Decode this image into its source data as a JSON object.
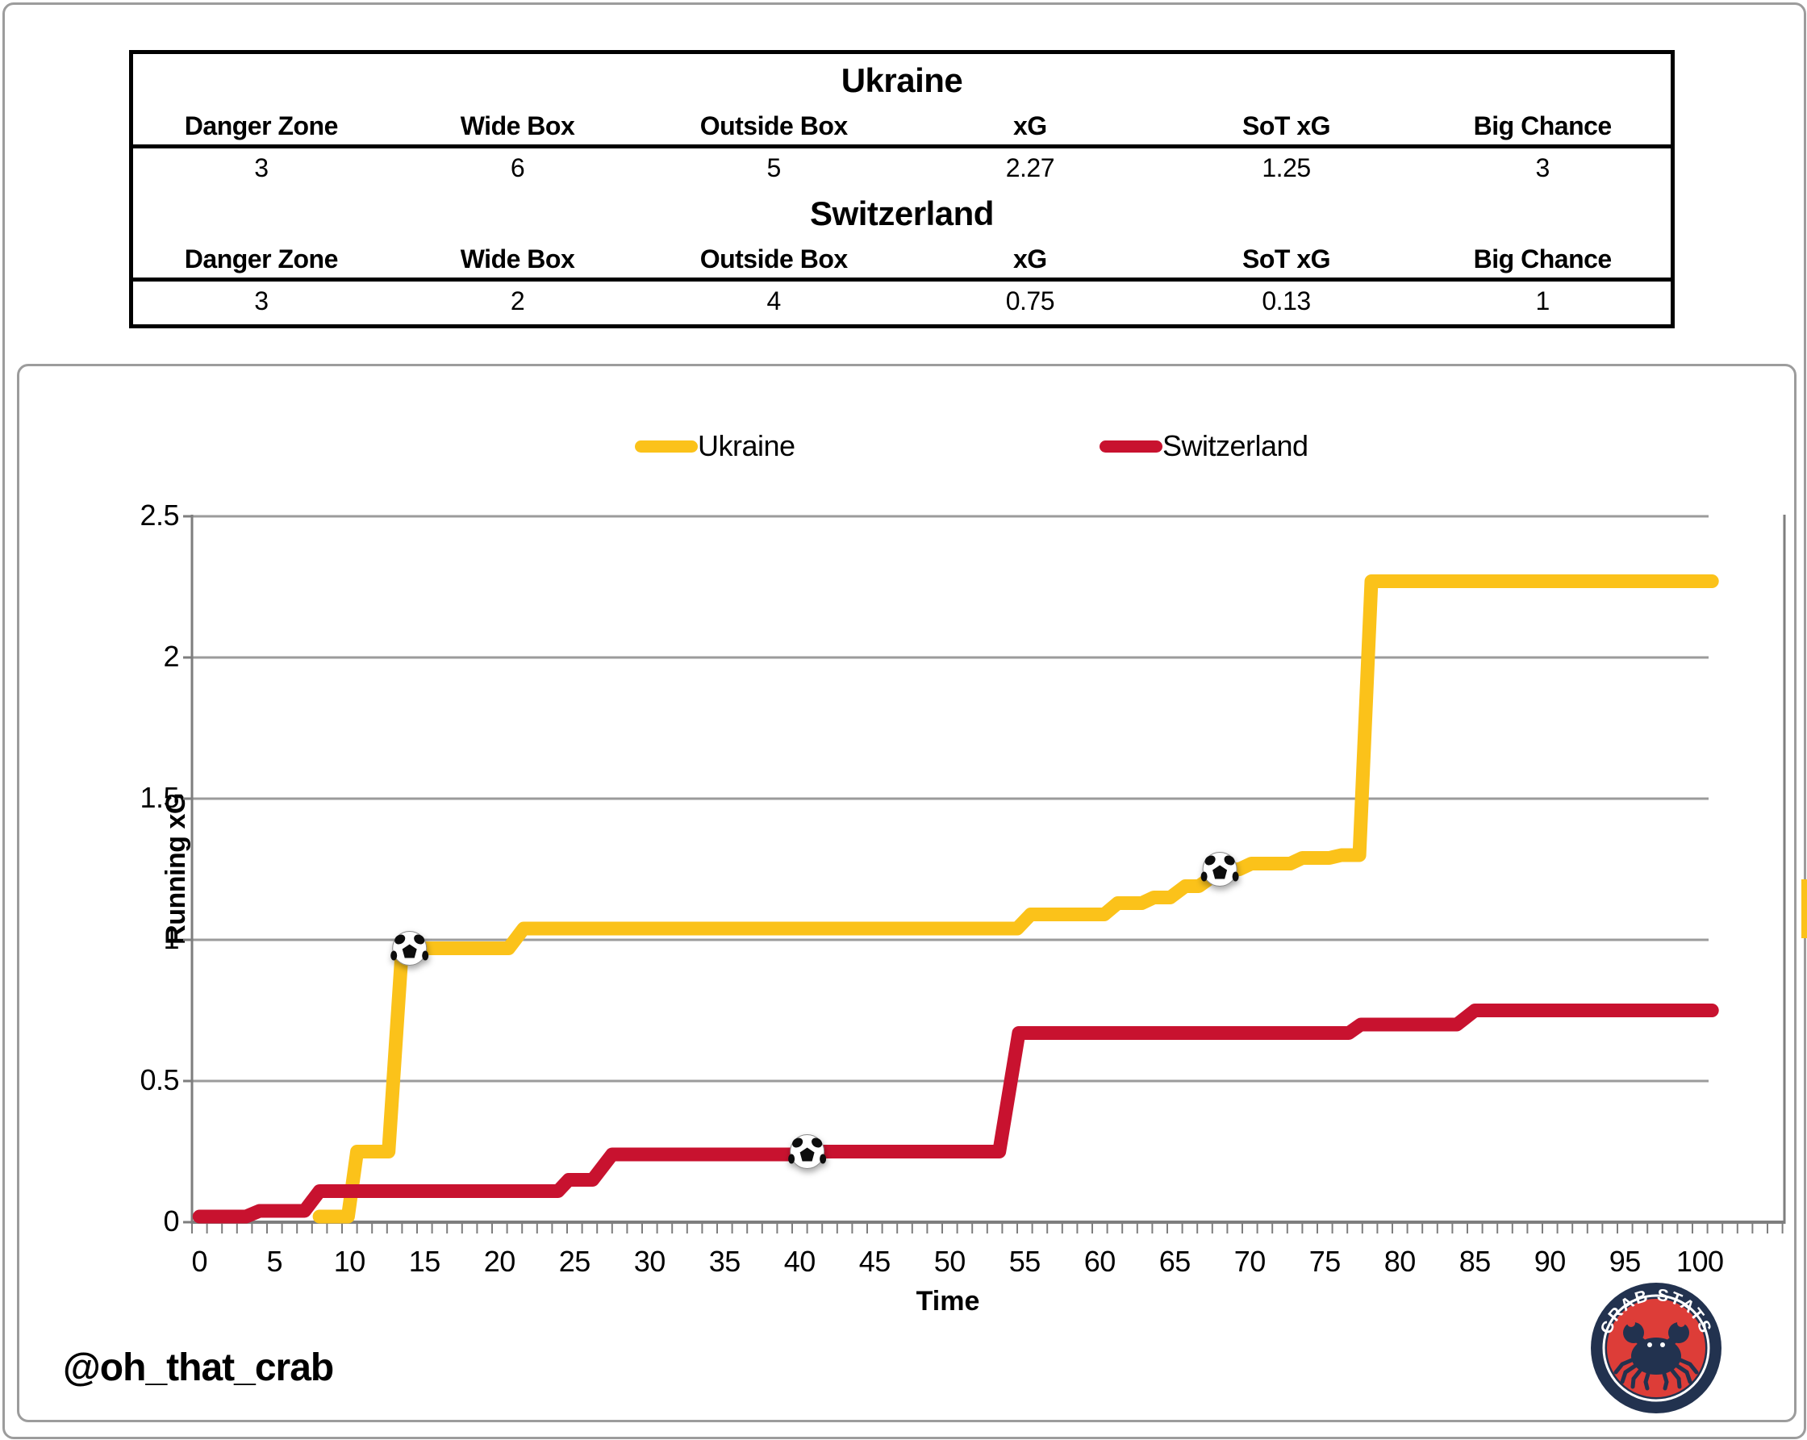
{
  "header_table": {
    "columns": [
      "Danger Zone",
      "Wide Box",
      "Outside Box",
      "xG",
      "SoT xG",
      "Big Chance"
    ],
    "teams": [
      {
        "name": "Ukraine",
        "values": [
          "3",
          "6",
          "5",
          "2.27",
          "1.25",
          "3"
        ]
      },
      {
        "name": "Switzerland",
        "values": [
          "3",
          "2",
          "4",
          "0.75",
          "0.13",
          "1"
        ]
      }
    ]
  },
  "legend": [
    {
      "label": "Ukraine",
      "color": "#FBC21A"
    },
    {
      "label": "Switzerland",
      "color": "#C8122F"
    }
  ],
  "footer": {
    "handle": "@oh_that_crab",
    "logo_text": "CRAB STATS"
  },
  "colors": {
    "ukraine": "#FBC21A",
    "switzerland": "#C8122F",
    "gridline": "#9b9b9b",
    "axis": "#7e7e7e",
    "logo_navy": "#22324F",
    "logo_red": "#DD3D38"
  },
  "chart_data": {
    "type": "line",
    "title": "",
    "xlabel": "Time",
    "ylabel": "Running xG",
    "xlim": [
      0,
      106
    ],
    "ylim": [
      0,
      2.5
    ],
    "x_ticks": [
      0,
      5,
      10,
      15,
      20,
      25,
      30,
      35,
      40,
      45,
      50,
      55,
      60,
      65,
      70,
      75,
      80,
      85,
      90,
      95,
      100
    ],
    "y_ticks": [
      "0",
      "0.5",
      "1",
      "1.5",
      "2",
      "2.5"
    ],
    "grid": true,
    "legend_position": "top",
    "series": [
      {
        "name": "Ukraine",
        "color": "#FBC21A",
        "final_xg": 2.27,
        "points": [
          [
            8,
            0.02
          ],
          [
            9.9,
            0.02
          ],
          [
            10.5,
            0.25
          ],
          [
            12.6,
            0.25
          ],
          [
            13.5,
            0.97
          ],
          [
            20.6,
            0.97
          ],
          [
            21.6,
            1.04
          ],
          [
            54.5,
            1.04
          ],
          [
            55.4,
            1.09
          ],
          [
            60.3,
            1.09
          ],
          [
            61.2,
            1.13
          ],
          [
            62.8,
            1.13
          ],
          [
            63.6,
            1.15
          ],
          [
            64.7,
            1.15
          ],
          [
            65.7,
            1.19
          ],
          [
            66.6,
            1.19
          ],
          [
            67.4,
            1.22
          ],
          [
            68.3,
            1.25
          ],
          [
            69.3,
            1.25
          ],
          [
            70.1,
            1.27
          ],
          [
            72.7,
            1.27
          ],
          [
            73.5,
            1.29
          ],
          [
            75.3,
            1.29
          ],
          [
            76.1,
            1.3
          ],
          [
            77.3,
            1.3
          ],
          [
            78.1,
            2.27
          ],
          [
            100.8,
            2.27
          ]
        ]
      },
      {
        "name": "Switzerland",
        "color": "#C8122F",
        "final_xg": 0.75,
        "points": [
          [
            0,
            0.02
          ],
          [
            3.1,
            0.02
          ],
          [
            4,
            0.04
          ],
          [
            7,
            0.04
          ],
          [
            8,
            0.11
          ],
          [
            23.9,
            0.11
          ],
          [
            24.6,
            0.15
          ],
          [
            26.2,
            0.15
          ],
          [
            27.5,
            0.24
          ],
          [
            40.1,
            0.24
          ],
          [
            40.9,
            0.25
          ],
          [
            53.3,
            0.25
          ],
          [
            54.6,
            0.67
          ],
          [
            76.6,
            0.67
          ],
          [
            77.4,
            0.7
          ],
          [
            83.8,
            0.7
          ],
          [
            85,
            0.75
          ],
          [
            100.8,
            0.75
          ]
        ]
      }
    ],
    "goal_markers": [
      {
        "team": "Ukraine",
        "time": 14,
        "xg": 0.97
      },
      {
        "team": "Switzerland",
        "time": 40.5,
        "xg": 0.25
      },
      {
        "team": "Ukraine",
        "time": 68,
        "xg": 1.25
      }
    ]
  }
}
